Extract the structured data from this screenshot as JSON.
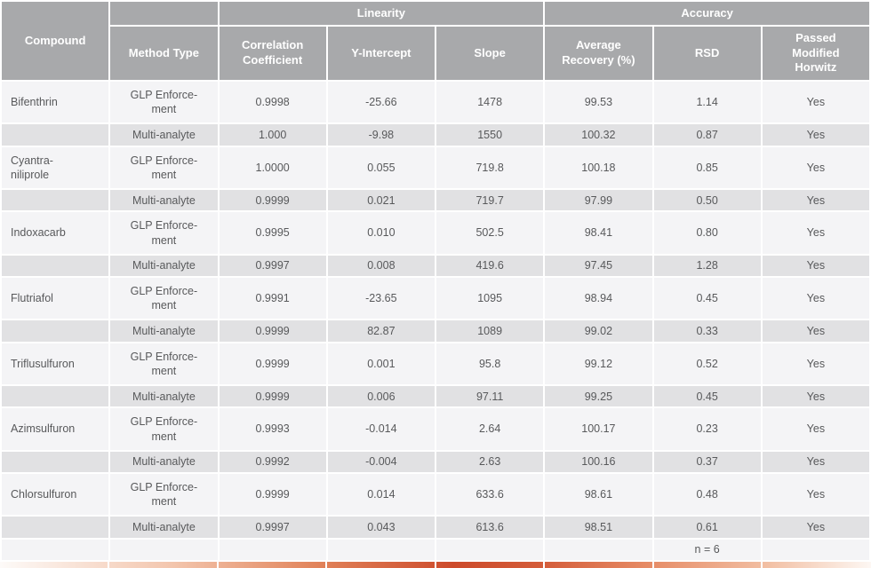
{
  "table": {
    "header": {
      "compound": "Compound",
      "method_type": "Method Type",
      "group_linearity": "Linearity",
      "group_accuracy": "Accuracy",
      "columns": [
        "Correlation\nCoefficient",
        "Y-Intercept",
        "Slope",
        "Average\nRecovery (%)",
        "RSD",
        "Passed\nModified\nHorwitz"
      ]
    },
    "rows": [
      {
        "compound": "Bifenthrin",
        "method": "GLP Enforce-\nment",
        "cc": "0.9998",
        "y_intercept": "-25.66",
        "slope": "1478",
        "recovery": "99.53",
        "rsd": "1.14",
        "passed": "Yes"
      },
      {
        "compound": "",
        "method": "Multi-analyte",
        "cc": "1.000",
        "y_intercept": "-9.98",
        "slope": "1550",
        "recovery": "100.32",
        "rsd": "0.87",
        "passed": "Yes"
      },
      {
        "compound": "Cyantra-\nniliprole",
        "method": "GLP Enforce-\nment",
        "cc": "1.0000",
        "y_intercept": "0.055",
        "slope": "719.8",
        "recovery": "100.18",
        "rsd": "0.85",
        "passed": "Yes"
      },
      {
        "compound": "",
        "method": "Multi-analyte",
        "cc": "0.9999",
        "y_intercept": "0.021",
        "slope": "719.7",
        "recovery": "97.99",
        "rsd": "0.50",
        "passed": "Yes"
      },
      {
        "compound": "Indoxacarb",
        "method": "GLP Enforce-\nment",
        "cc": "0.9995",
        "y_intercept": "0.010",
        "slope": "502.5",
        "recovery": "98.41",
        "rsd": "0.80",
        "passed": "Yes"
      },
      {
        "compound": "",
        "method": "Multi-analyte",
        "cc": "0.9997",
        "y_intercept": "0.008",
        "slope": "419.6",
        "recovery": "97.45",
        "rsd": "1.28",
        "passed": "Yes"
      },
      {
        "compound": "Flutriafol",
        "method": "GLP Enforce-\nment",
        "cc": "0.9991",
        "y_intercept": "-23.65",
        "slope": "1095",
        "recovery": "98.94",
        "rsd": "0.45",
        "passed": "Yes"
      },
      {
        "compound": "",
        "method": "Multi-analyte",
        "cc": "0.9999",
        "y_intercept": "82.87",
        "slope": "1089",
        "recovery": "99.02",
        "rsd": "0.33",
        "passed": "Yes"
      },
      {
        "compound": "Triflusulfuron",
        "method": "GLP Enforce-\nment",
        "cc": "0.9999",
        "y_intercept": "0.001",
        "slope": "95.8",
        "recovery": "99.12",
        "rsd": "0.52",
        "passed": "Yes"
      },
      {
        "compound": "",
        "method": "Multi-analyte",
        "cc": "0.9999",
        "y_intercept": "0.006",
        "slope": "97.11",
        "recovery": "99.25",
        "rsd": "0.45",
        "passed": "Yes"
      },
      {
        "compound": "Azimsulfuron",
        "method": "GLP Enforce-\nment",
        "cc": "0.9993",
        "y_intercept": "-0.014",
        "slope": "2.64",
        "recovery": "100.17",
        "rsd": "0.23",
        "passed": "Yes"
      },
      {
        "compound": "",
        "method": "Multi-analyte",
        "cc": "0.9992",
        "y_intercept": "-0.004",
        "slope": "2.63",
        "recovery": "100.16",
        "rsd": "0.37",
        "passed": "Yes"
      },
      {
        "compound": "Chlorsulfuron",
        "method": "GLP Enforce-\nment",
        "cc": "0.9999",
        "y_intercept": "0.014",
        "slope": "633.6",
        "recovery": "98.61",
        "rsd": "0.48",
        "passed": "Yes"
      },
      {
        "compound": "",
        "method": "Multi-analyte",
        "cc": "0.9997",
        "y_intercept": "0.043",
        "slope": "613.6",
        "recovery": "98.51",
        "rsd": "0.61",
        "passed": "Yes"
      }
    ],
    "footer_note": "n = 6"
  },
  "colors": {
    "header_bg": "#a8a9ab",
    "header_text": "#ffffff",
    "row_light": "#f4f4f6",
    "row_dark": "#e1e1e3",
    "body_text": "#58595b",
    "accent_gradient": [
      "#fdfaf8",
      "#f3c5ac",
      "#cd4b2b",
      "#f2bfa3",
      "#fdf7f3"
    ]
  }
}
